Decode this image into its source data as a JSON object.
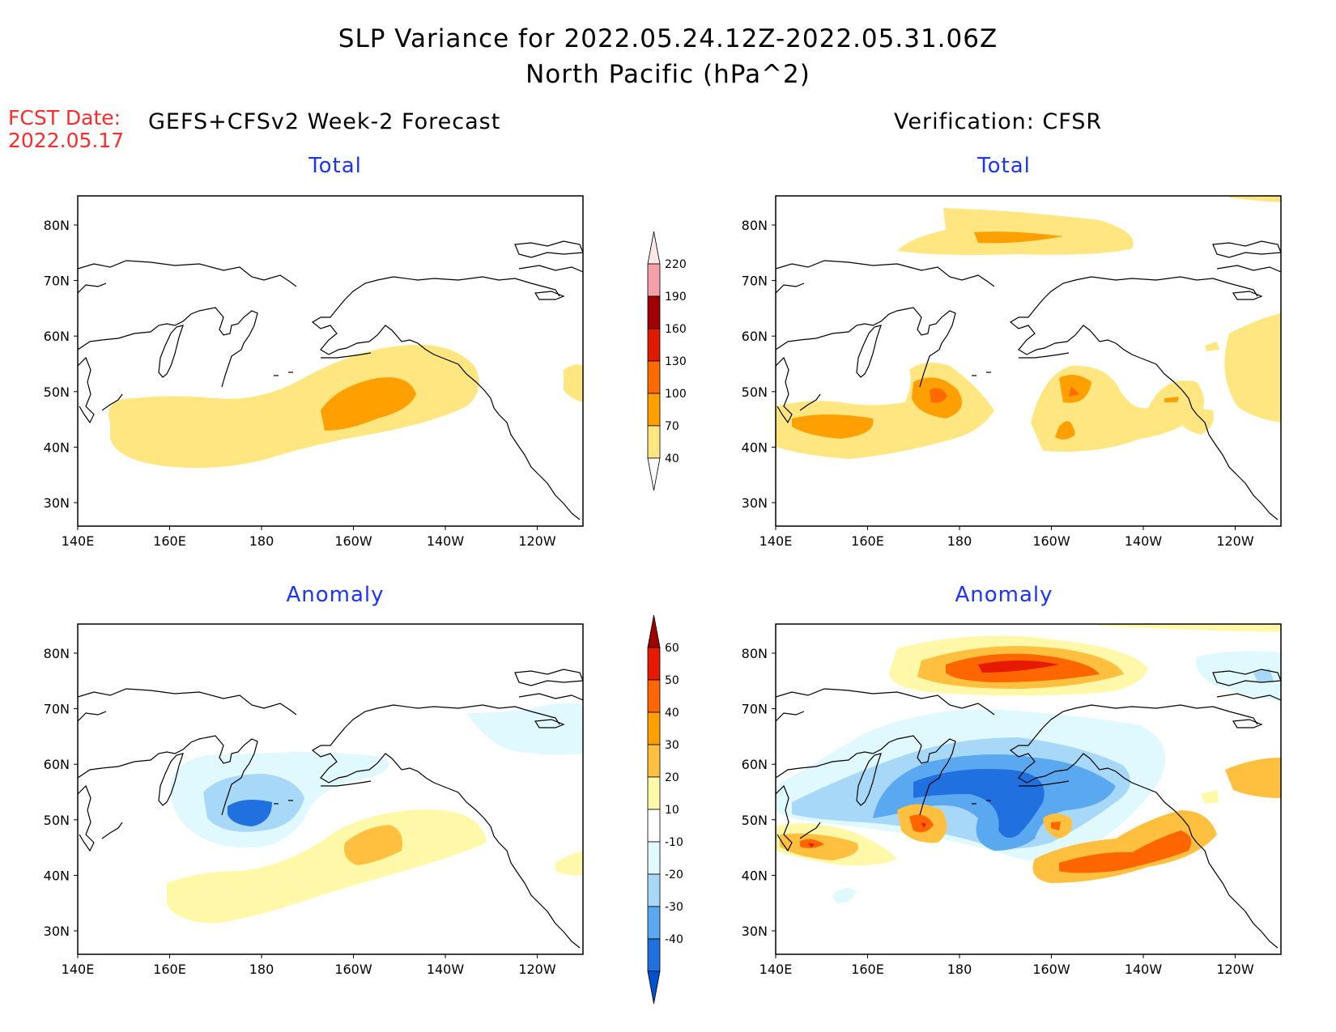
{
  "title": {
    "line1": "SLP Variance for 2022.05.24.12Z-2022.05.31.06Z",
    "line2": "North Pacific (hPa^2)"
  },
  "forecast_date": {
    "label": "FCST Date:",
    "value": "2022.05.17"
  },
  "left_column_title": "GEFS+CFSv2 Week-2 Forecast",
  "right_column_title": "Verification: CFSR",
  "panels": [
    {
      "id": "forecast-total",
      "title": "Total"
    },
    {
      "id": "verification-total",
      "title": "Total"
    },
    {
      "id": "forecast-anomaly",
      "title": "Anomaly"
    },
    {
      "id": "verification-anomaly",
      "title": "Anomaly"
    }
  ],
  "axes": {
    "lat_ticks": [
      "80N",
      "70N",
      "60N",
      "50N",
      "40N",
      "30N"
    ],
    "lon_ticks": [
      "140E",
      "160E",
      "180",
      "160W",
      "140W",
      "120W"
    ]
  },
  "total_colorbar": {
    "levels": [
      "220",
      "190",
      "160",
      "130",
      "100",
      "70",
      "40"
    ],
    "colors": [
      "#fce8e8",
      "#f4a0a8",
      "#a00000",
      "#e01a00",
      "#ff6a00",
      "#ffa000",
      "#ffe680"
    ]
  },
  "anomaly_colorbar": {
    "levels": [
      "60",
      "50",
      "40",
      "30",
      "20",
      "10",
      "-10",
      "-20",
      "-30",
      "-40"
    ],
    "colors": {
      "pos": [
        "#a00000",
        "#e61a00",
        "#ff6600",
        "#ffa000",
        "#ffc040",
        "#fff8a8"
      ],
      "neutral": "#ffffff",
      "neg": [
        "#e0f8ff",
        "#a8d8f8",
        "#5aa8f0",
        "#2070e0",
        "#0050d0"
      ]
    }
  }
}
